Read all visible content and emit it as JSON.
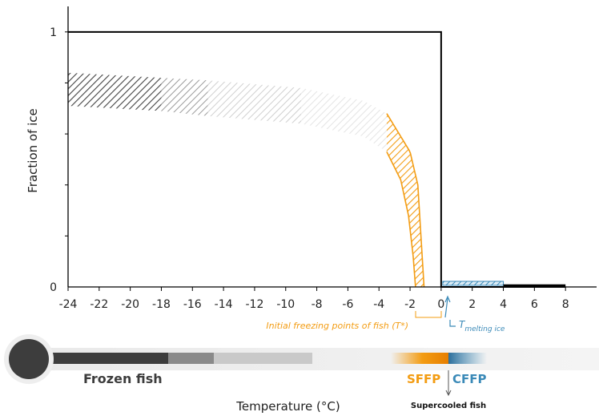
{
  "chart_data": {
    "type": "area",
    "title": "",
    "xlabel": "Temperature (°C)",
    "ylabel": "Fraction of ice",
    "xlim": [
      -24,
      10
    ],
    "ylim": [
      0,
      1.1
    ],
    "x_ticks": [
      -24,
      -22,
      -20,
      -18,
      -16,
      -14,
      -12,
      -10,
      -8,
      -6,
      -4,
      -2,
      0,
      2,
      4,
      6,
      8
    ],
    "y_ticks": [
      0,
      1
    ],
    "series": [
      {
        "kind": "step",
        "x": [
          -24,
          0,
          0,
          8
        ],
        "y": [
          1,
          1,
          0,
          0
        ]
      },
      {
        "kind": "band",
        "x": [
          -24,
          -18,
          -15,
          -9,
          -5,
          -3.5,
          -2,
          -1.5,
          -1.1
        ],
        "y_upper": [
          0.84,
          0.82,
          0.81,
          0.78,
          0.73,
          0.68,
          0.53,
          0.4,
          0
        ],
        "y_lower": [
          0.71,
          0.69,
          0.67,
          0.64,
          0.59,
          0.53,
          0.35,
          0.22,
          0
        ]
      }
    ],
    "annotations": {
      "freezing_label": "Initial freezing points of fish (T*)",
      "melting_label": "T",
      "melting_sub": "melting ice"
    }
  },
  "thermometer": {
    "frozen_label": "Frozen fish",
    "sffp_label": "SFFP",
    "cffp_label": "CFFP",
    "supercooled_label": "Supercooled fish"
  },
  "colors": {
    "orange": "#f39c12",
    "blue": "#3b8ab8",
    "dark": "#3d3d3d",
    "axis": "#000000"
  }
}
